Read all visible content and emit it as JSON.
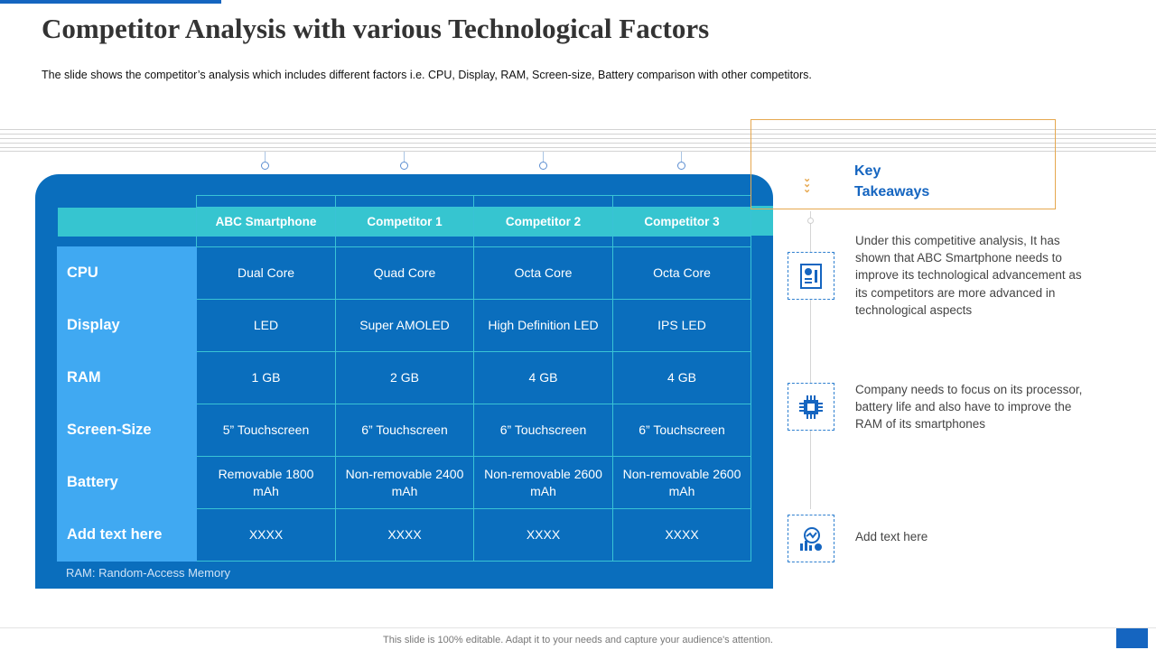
{
  "title": "Competitor Analysis with various Technological Factors",
  "subtitle": "The slide shows the competitor’s analysis which includes different factors i.e. CPU, Display, RAM, Screen-size, Battery comparison with other competitors.",
  "table": {
    "columns": [
      "ABC Smartphone",
      "Competitor 1",
      "Competitor 2",
      "Competitor 3"
    ],
    "rows": [
      {
        "label": "CPU",
        "cells": [
          "Dual Core",
          "Quad Core",
          "Octa Core",
          "Octa Core"
        ]
      },
      {
        "label": "Display",
        "cells": [
          "LED",
          "Super AMOLED",
          "High Definition LED",
          "IPS LED"
        ]
      },
      {
        "label": "RAM",
        "cells": [
          "1 GB",
          "2 GB",
          "4 GB",
          "4 GB"
        ]
      },
      {
        "label": "Screen-Size",
        "cells": [
          "5” Touchscreen",
          "6” Touchscreen",
          "6” Touchscreen",
          "6” Touchscreen"
        ]
      },
      {
        "label": "Battery",
        "cells": [
          "Removable 1800 mAh",
          "Non-removable 2400 mAh",
          "Non-removable 2600 mAh",
          "Non-removable 2600 mAh"
        ]
      },
      {
        "label": "Add text here",
        "cells": [
          "XXXX",
          "XXXX",
          "XXXX",
          "XXXX"
        ]
      }
    ],
    "note": "RAM: Random-Access Memory"
  },
  "takeaways": {
    "title_line1": "Key",
    "title_line2": "Takeaways",
    "items": [
      {
        "icon": "report-icon",
        "text": "Under this competitive analysis, It has shown that ABC Smartphone  needs to improve its technological advancement as its competitors  are more  advanced in technological aspects"
      },
      {
        "icon": "processor-chip-icon",
        "text": "Company needs to focus on its processor, battery life and also have to improve the RAM of its smartphones"
      },
      {
        "icon": "analytics-icon",
        "text": "Add text here"
      }
    ]
  },
  "footer": "This slide is 100% editable. Adapt it to your needs and capture your audience's attention.",
  "colors": {
    "brand_blue": "#1565c0",
    "panel_blue": "#0a6ebd",
    "teal": "#36c5d0",
    "row_header": "#40a9f2",
    "accent_orange": "#e6a84f"
  }
}
